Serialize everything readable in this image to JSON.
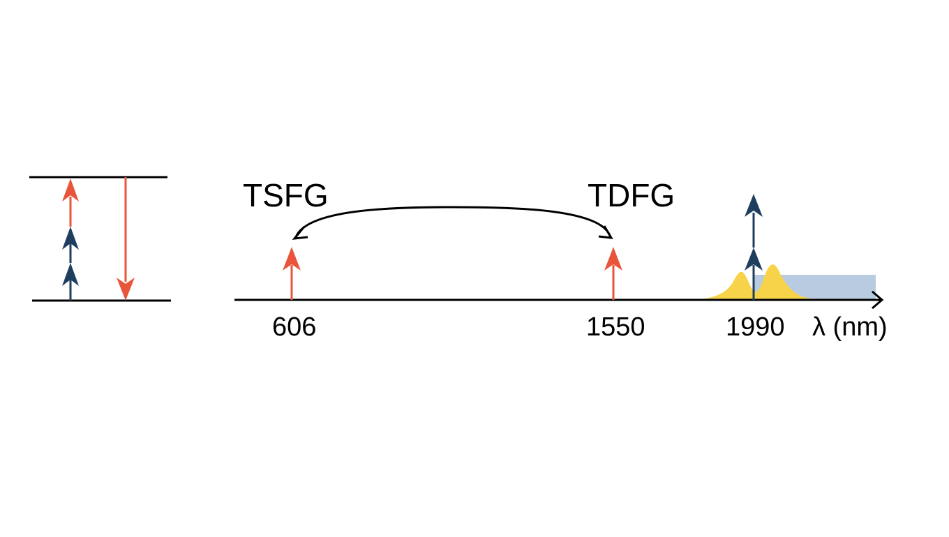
{
  "colors": {
    "red": "#e8553a",
    "navy": "#1f3e5e",
    "yellow": "#f7d34a",
    "band": "#b8cbe0",
    "line": "#000000"
  },
  "labels": {
    "tsfg": "TSFG",
    "tdfg": "TDFG",
    "axis_unit": "λ (nm)"
  },
  "ticks": [
    "606",
    "1550",
    "1990"
  ]
}
